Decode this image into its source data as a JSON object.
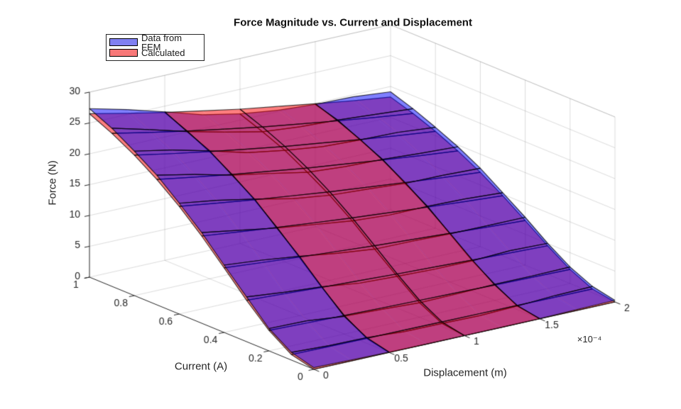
{
  "figure": {
    "title": "Force Magnitude vs. Current and Displacement",
    "background_color": "#ffffff"
  },
  "legend": {
    "items": [
      {
        "label": "Data from FEM",
        "swatch_color": "#8080f2",
        "swatch_edge": "#000000"
      },
      {
        "label": "Calculated",
        "swatch_color": "#f87878",
        "swatch_edge": "#000000"
      }
    ]
  },
  "chart_data": {
    "type": "surface",
    "title": "Force Magnitude vs. Current and Displacement",
    "xlabel": "Displacement (m)",
    "x_multiplier": "×10⁻⁴",
    "ylabel": "Current (A)",
    "zlabel": "Force (N)",
    "view": {
      "azimuth": -37.5,
      "elevation": 30
    },
    "grid": true,
    "legend_position": "northwest",
    "x_displacement_e4": [
      0,
      0.25,
      0.5,
      0.75,
      1,
      1.25,
      1.5,
      1.75,
      2
    ],
    "x_tick_values_e4": [
      0,
      0.5,
      1,
      1.5,
      2
    ],
    "x_tick_labels": [
      "0",
      "0.5",
      "1",
      "1.5",
      "2"
    ],
    "xlim_e4": [
      0,
      2
    ],
    "y_current": [
      0,
      0.1,
      0.2,
      0.3,
      0.4,
      0.5,
      0.6,
      0.7,
      0.8,
      0.9,
      1
    ],
    "y_tick_values": [
      0,
      0.2,
      0.4,
      0.6,
      0.8,
      1
    ],
    "y_tick_labels": [
      "0",
      "0.2",
      "0.4",
      "0.6",
      "0.8",
      "1"
    ],
    "ylim": [
      0,
      1
    ],
    "z_ticks": [
      0,
      5,
      10,
      15,
      20,
      25,
      30
    ],
    "zlim": [
      0,
      30
    ],
    "series": [
      {
        "name": "Data from FEM",
        "face_color": "#0000ff",
        "face_alpha": 0.5,
        "edge_color": "#000000",
        "z": [
          [
            0.27,
            0.16,
            0.06,
            0.0,
            0.0,
            0.0,
            0.03,
            0.16,
            0.26
          ],
          [
            1.25,
            0.98,
            0.92,
            0.52,
            0.48,
            0.38,
            0.58,
            0.9,
            1.02
          ],
          [
            3.62,
            3.51,
            2.87,
            2.65,
            2.35,
            2.43,
            2.6,
            2.6,
            2.68
          ],
          [
            7.25,
            6.64,
            6.17,
            5.39,
            5.13,
            4.93,
            4.93,
            5.2,
            5.03
          ],
          [
            10.92,
            10.36,
            9.62,
            8.73,
            8.05,
            7.97,
            7.8,
            7.76,
            7.76
          ],
          [
            14.69,
            13.71,
            12.7,
            11.91,
            11.13,
            10.73,
            10.76,
            10.6,
            10.24
          ],
          [
            17.96,
            17.06,
            15.91,
            14.6,
            13.79,
            13.42,
            12.99,
            12.93,
            12.71
          ],
          [
            21.03,
            19.77,
            18.28,
            17.2,
            16.02,
            15.57,
            15.39,
            14.99,
            14.71
          ],
          [
            23.42,
            22.23,
            20.74,
            19.08,
            18.09,
            17.32,
            17.05,
            16.91,
            16.37
          ],
          [
            25.64,
            24.06,
            22.36,
            20.92,
            19.62,
            19.06,
            18.77,
            18.33,
            17.89
          ],
          [
            27.33,
            25.81,
            24.08,
            22.25,
            21.01,
            20.23,
            19.83,
            19.69,
            19.14
          ]
        ]
      },
      {
        "name": "Calculated",
        "face_color": "#ff0000",
        "face_alpha": 0.5,
        "edge_color": "#000000",
        "z": [
          [
            0.0,
            0.0,
            0.0,
            0.0,
            0.0,
            0.0,
            0.0,
            0.0,
            0.0
          ],
          [
            0.89,
            0.84,
            0.8,
            0.77,
            0.73,
            0.7,
            0.67,
            0.64,
            0.61
          ],
          [
            3.32,
            3.15,
            3.0,
            2.86,
            2.73,
            2.61,
            2.49,
            2.39,
            2.29
          ],
          [
            6.72,
            6.39,
            6.08,
            5.8,
            5.52,
            5.29,
            5.05,
            4.83,
            4.63
          ],
          [
            10.48,
            9.96,
            9.48,
            9.04,
            8.61,
            8.25,
            7.88,
            7.53,
            7.23
          ],
          [
            14.14,
            13.45,
            12.8,
            12.2,
            11.62,
            11.13,
            10.63,
            10.17,
            9.76
          ],
          [
            17.46,
            16.6,
            15.8,
            15.07,
            14.35,
            13.74,
            13.13,
            12.55,
            12.05
          ],
          [
            20.33,
            19.34,
            18.4,
            17.55,
            16.71,
            16.0,
            15.29,
            14.62,
            14.03
          ],
          [
            22.77,
            21.65,
            20.61,
            19.65,
            18.72,
            17.92,
            17.12,
            16.37,
            15.71
          ],
          [
            24.81,
            23.59,
            22.45,
            21.41,
            20.39,
            19.52,
            18.65,
            17.84,
            17.12
          ],
          [
            26.5,
            25.2,
            23.98,
            22.87,
            21.78,
            20.86,
            19.93,
            19.05,
            18.29
          ]
        ]
      }
    ],
    "colors": {
      "axis_line": "#262626",
      "tick_label": "#262626",
      "grid_line": "rgba(38,38,38,0.16)",
      "mesh_edge": "rgba(0,0,0,0.75)"
    }
  }
}
